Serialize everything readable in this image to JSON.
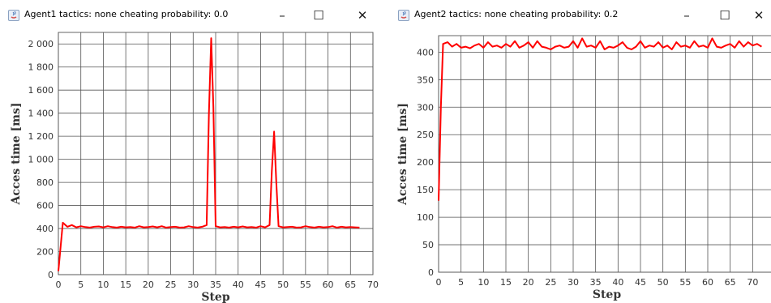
{
  "windows": [
    {
      "title": "Agent1 tactics: none cheating probability: 0.0",
      "chart_data": {
        "type": "line",
        "xlabel": "Step",
        "ylabel": "Acces time [ms]",
        "xlim": [
          0,
          70
        ],
        "ylim": [
          0,
          2100
        ],
        "xticks": [
          0,
          5,
          10,
          15,
          20,
          25,
          30,
          35,
          40,
          45,
          50,
          55,
          60,
          65,
          70
        ],
        "yticks": [
          0,
          200,
          400,
          600,
          800,
          1000,
          1200,
          1400,
          1600,
          1800,
          2000
        ],
        "ytick_labels": [
          "0",
          "200",
          "400",
          "600",
          "800",
          "1 000",
          "1 200",
          "1 400",
          "1 600",
          "1 800",
          "2 000"
        ],
        "grid": true,
        "series": [
          {
            "color": "#ff0000",
            "x": [
              0,
              1,
              2,
              3,
              4,
              5,
              6,
              7,
              8,
              9,
              10,
              11,
              12,
              13,
              14,
              15,
              16,
              17,
              18,
              19,
              20,
              21,
              22,
              23,
              24,
              25,
              26,
              27,
              28,
              29,
              30,
              31,
              32,
              33,
              33.5,
              34,
              34.5,
              35,
              36,
              37,
              38,
              39,
              40,
              41,
              42,
              43,
              44,
              45,
              46,
              47,
              47.5,
              48,
              48.5,
              49,
              50,
              51,
              52,
              53,
              54,
              55,
              56,
              57,
              58,
              59,
              60,
              61,
              62,
              63,
              64,
              65,
              66,
              67
            ],
            "y": [
              30,
              450,
              415,
              430,
              410,
              420,
              412,
              408,
              415,
              418,
              410,
              420,
              412,
              408,
              415,
              410,
              412,
              408,
              420,
              410,
              412,
              418,
              410,
              420,
              408,
              412,
              415,
              408,
              410,
              420,
              412,
              408,
              415,
              430,
              1400,
              2050,
              1450,
              420,
              410,
              412,
              408,
              415,
              410,
              418,
              410,
              412,
              408,
              420,
              410,
              430,
              900,
              1240,
              800,
              420,
              410,
              412,
              415,
              408,
              410,
              420,
              412,
              408,
              415,
              410,
              412,
              420,
              408,
              415,
              410,
              412,
              410,
              408
            ]
          }
        ]
      }
    },
    {
      "title": "Agent2 tactics: none cheating probability: 0.2",
      "chart_data": {
        "type": "line",
        "xlabel": "Step",
        "ylabel": "Acces time [ms]",
        "xlim": [
          0,
          75
        ],
        "ylim": [
          0,
          430
        ],
        "xticks": [
          0,
          5,
          10,
          15,
          20,
          25,
          30,
          35,
          40,
          45,
          50,
          55,
          60,
          65,
          70
        ],
        "yticks": [
          0,
          50,
          100,
          150,
          200,
          250,
          300,
          350,
          400
        ],
        "ytick_labels": [
          "0",
          "50",
          "100",
          "150",
          "200",
          "250",
          "300",
          "350",
          "400"
        ],
        "grid": true,
        "series": [
          {
            "color": "#ff0000",
            "x": [
              0,
              0.5,
              1,
              2,
              3,
              4,
              5,
              6,
              7,
              8,
              9,
              10,
              11,
              12,
              13,
              14,
              15,
              16,
              17,
              18,
              19,
              20,
              21,
              22,
              23,
              24,
              25,
              26,
              27,
              28,
              29,
              30,
              31,
              32,
              33,
              34,
              35,
              36,
              37,
              38,
              39,
              40,
              41,
              42,
              43,
              44,
              45,
              46,
              47,
              48,
              49,
              50,
              51,
              52,
              53,
              54,
              55,
              56,
              57,
              58,
              59,
              60,
              61,
              62,
              63,
              64,
              65,
              66,
              67,
              68,
              69,
              70,
              71,
              72
            ],
            "y": [
              130,
              300,
              415,
              418,
              410,
              415,
              408,
              410,
              407,
              412,
              415,
              408,
              418,
              410,
              412,
              408,
              415,
              410,
              420,
              408,
              412,
              418,
              408,
              420,
              410,
              408,
              405,
              410,
              412,
              408,
              410,
              420,
              408,
              425,
              410,
              412,
              408,
              420,
              405,
              410,
              408,
              412,
              418,
              408,
              405,
              410,
              420,
              408,
              412,
              410,
              418,
              408,
              412,
              405,
              418,
              410,
              412,
              408,
              420,
              410,
              412,
              408,
              425,
              410,
              408,
              412,
              415,
              408,
              420,
              410,
              418,
              412,
              415,
              410
            ]
          }
        ]
      }
    }
  ]
}
